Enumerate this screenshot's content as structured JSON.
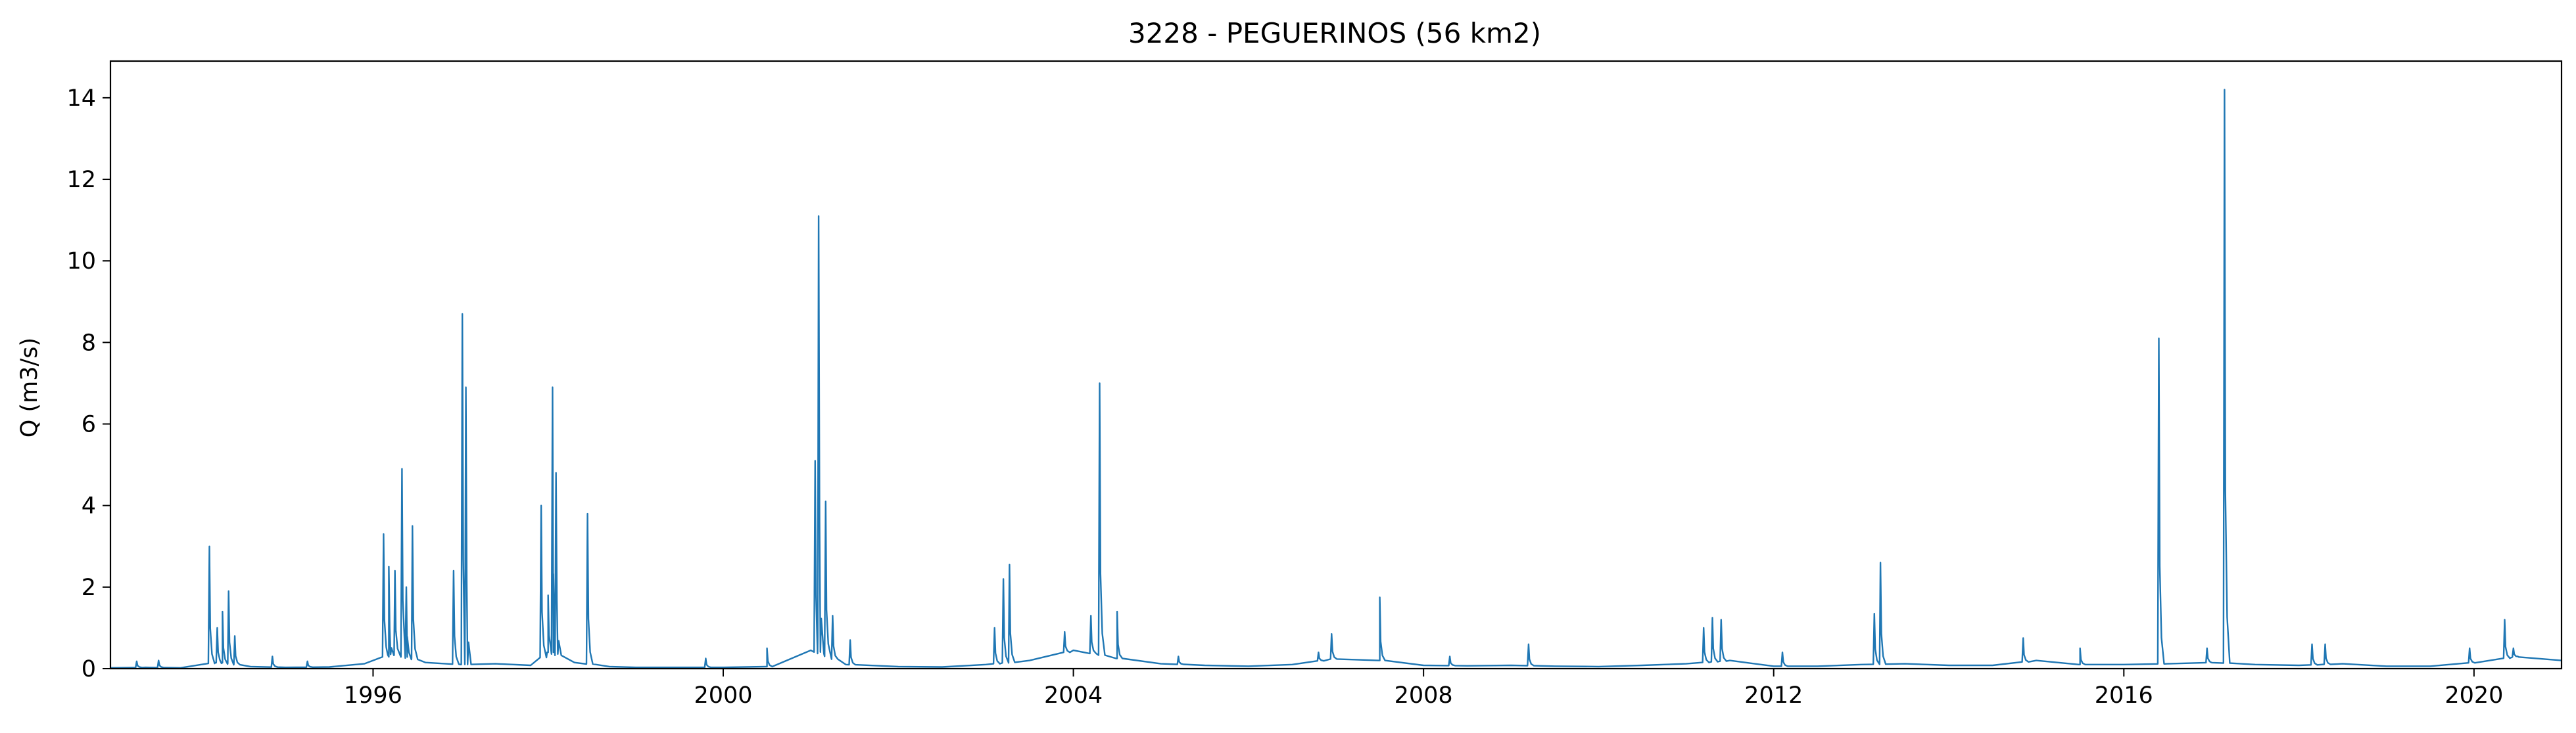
{
  "chart_data": {
    "type": "line",
    "title": "3228 - PEGUERINOS (56 km2)",
    "xlabel": "",
    "ylabel": "Q (m3/s)",
    "xlim": [
      1993.0,
      2021.0
    ],
    "ylim": [
      0,
      14.9
    ],
    "grid": false,
    "legend": "none",
    "x_ticks": [
      1996,
      2000,
      2004,
      2008,
      2012,
      2016,
      2020
    ],
    "x_tick_labels": [
      "1996",
      "2000",
      "2004",
      "2008",
      "2012",
      "2016",
      "2020"
    ],
    "y_ticks": [
      0,
      2,
      4,
      6,
      8,
      10,
      12,
      14
    ],
    "y_tick_labels": [
      "0",
      "2",
      "4",
      "6",
      "8",
      "10",
      "12",
      "14"
    ],
    "series": [
      {
        "color": "#1f77b4",
        "baseline": [
          [
            1993.0,
            0.02
          ],
          [
            1993.4,
            0.03
          ],
          [
            1993.8,
            0.02
          ],
          [
            1994.2,
            0.15
          ],
          [
            1994.6,
            0.05
          ],
          [
            1995.0,
            0.03
          ],
          [
            1995.5,
            0.04
          ],
          [
            1995.9,
            0.12
          ],
          [
            1996.2,
            0.35
          ],
          [
            1996.6,
            0.15
          ],
          [
            1997.0,
            0.1
          ],
          [
            1997.4,
            0.12
          ],
          [
            1997.8,
            0.08
          ],
          [
            1998.0,
            0.4
          ],
          [
            1998.3,
            0.15
          ],
          [
            1998.7,
            0.05
          ],
          [
            1999.0,
            0.03
          ],
          [
            1999.5,
            0.03
          ],
          [
            2000.0,
            0.03
          ],
          [
            2000.5,
            0.05
          ],
          [
            2001.0,
            0.45
          ],
          [
            2001.4,
            0.1
          ],
          [
            2002.0,
            0.05
          ],
          [
            2002.5,
            0.04
          ],
          [
            2003.0,
            0.1
          ],
          [
            2003.5,
            0.2
          ],
          [
            2004.0,
            0.45
          ],
          [
            2004.5,
            0.25
          ],
          [
            2005.0,
            0.12
          ],
          [
            2005.5,
            0.08
          ],
          [
            2006.0,
            0.06
          ],
          [
            2006.5,
            0.1
          ],
          [
            2007.0,
            0.25
          ],
          [
            2007.5,
            0.2
          ],
          [
            2008.0,
            0.08
          ],
          [
            2008.5,
            0.07
          ],
          [
            2009.0,
            0.08
          ],
          [
            2009.5,
            0.06
          ],
          [
            2010.0,
            0.05
          ],
          [
            2010.5,
            0.08
          ],
          [
            2011.0,
            0.12
          ],
          [
            2011.5,
            0.2
          ],
          [
            2012.0,
            0.06
          ],
          [
            2012.5,
            0.06
          ],
          [
            2013.0,
            0.1
          ],
          [
            2013.5,
            0.12
          ],
          [
            2014.0,
            0.08
          ],
          [
            2014.5,
            0.08
          ],
          [
            2015.0,
            0.2
          ],
          [
            2015.5,
            0.1
          ],
          [
            2016.0,
            0.1
          ],
          [
            2016.5,
            0.12
          ],
          [
            2017.0,
            0.15
          ],
          [
            2017.5,
            0.1
          ],
          [
            2018.0,
            0.08
          ],
          [
            2018.5,
            0.12
          ],
          [
            2019.0,
            0.06
          ],
          [
            2019.5,
            0.06
          ],
          [
            2020.0,
            0.15
          ],
          [
            2020.5,
            0.3
          ],
          [
            2021.0,
            0.2
          ]
        ],
        "peaks": [
          [
            1993.3,
            0.18
          ],
          [
            1993.55,
            0.2
          ],
          [
            1994.13,
            3.0
          ],
          [
            1994.22,
            1.0
          ],
          [
            1994.28,
            1.4
          ],
          [
            1994.35,
            1.9
          ],
          [
            1994.42,
            0.8
          ],
          [
            1994.85,
            0.3
          ],
          [
            1995.25,
            0.18
          ],
          [
            1996.12,
            3.3
          ],
          [
            1996.18,
            2.5
          ],
          [
            1996.25,
            2.4
          ],
          [
            1996.33,
            4.9
          ],
          [
            1996.38,
            2.0
          ],
          [
            1996.45,
            3.5
          ],
          [
            1996.92,
            2.4
          ],
          [
            1997.02,
            8.7
          ],
          [
            1997.06,
            6.9
          ],
          [
            1997.92,
            4.0
          ],
          [
            1998.0,
            1.8
          ],
          [
            1998.05,
            6.9
          ],
          [
            1998.09,
            4.8
          ],
          [
            1998.45,
            3.8
          ],
          [
            1999.8,
            0.25
          ],
          [
            2000.5,
            0.5
          ],
          [
            2001.05,
            5.1
          ],
          [
            2001.09,
            11.1
          ],
          [
            2001.17,
            4.1
          ],
          [
            2001.25,
            1.3
          ],
          [
            2001.45,
            0.7
          ],
          [
            2003.1,
            1.0
          ],
          [
            2003.2,
            2.2
          ],
          [
            2003.27,
            2.55
          ],
          [
            2003.9,
            0.9
          ],
          [
            2004.2,
            1.3
          ],
          [
            2004.3,
            7.0
          ],
          [
            2004.5,
            1.4
          ],
          [
            2005.2,
            0.3
          ],
          [
            2006.8,
            0.4
          ],
          [
            2006.95,
            0.85
          ],
          [
            2007.5,
            1.75
          ],
          [
            2008.3,
            0.3
          ],
          [
            2009.2,
            0.6
          ],
          [
            2011.2,
            1.0
          ],
          [
            2011.3,
            1.25
          ],
          [
            2011.4,
            1.2
          ],
          [
            2012.1,
            0.4
          ],
          [
            2013.15,
            1.35
          ],
          [
            2013.22,
            2.6
          ],
          [
            2014.85,
            0.75
          ],
          [
            2015.5,
            0.5
          ],
          [
            2016.4,
            8.1
          ],
          [
            2016.95,
            0.5
          ],
          [
            2017.15,
            14.2
          ],
          [
            2018.15,
            0.6
          ],
          [
            2018.3,
            0.6
          ],
          [
            2019.95,
            0.5
          ],
          [
            2020.35,
            1.2
          ],
          [
            2020.45,
            0.5
          ]
        ]
      }
    ]
  }
}
